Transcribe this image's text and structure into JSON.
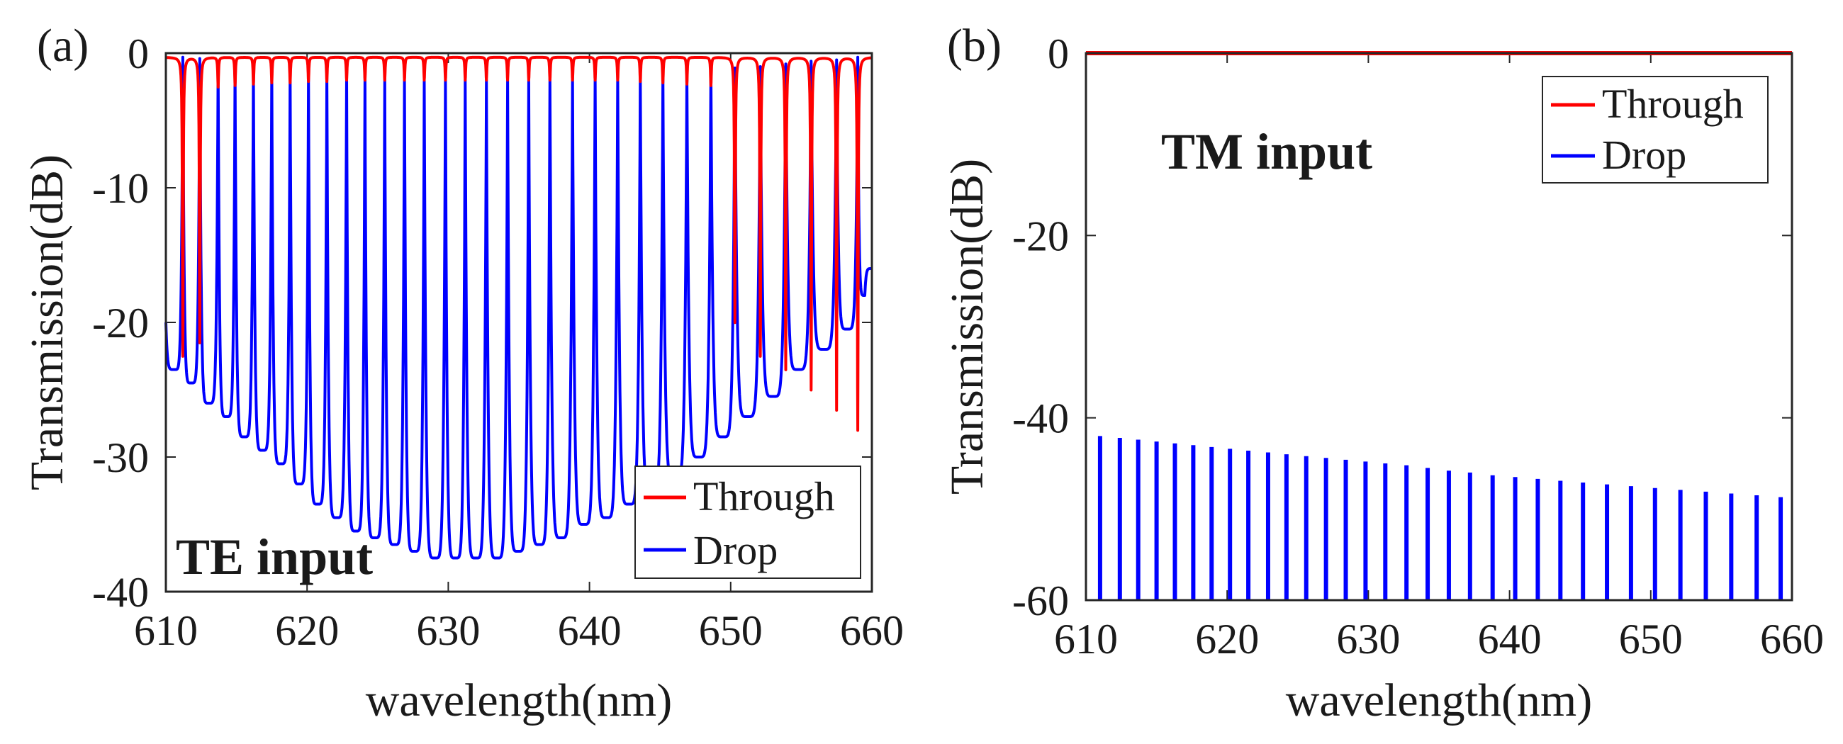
{
  "figure": {
    "colors": {
      "through": "#ff0000",
      "drop": "#0000ff",
      "axis": "#262626"
    }
  },
  "chart_data": [
    {
      "type": "line",
      "panel_label": "(a)",
      "annotation": "TE input",
      "xlabel": "wavelength(nm)",
      "ylabel": "Transmission(dB)",
      "xlim": [
        610,
        660
      ],
      "ylim": [
        -40,
        0
      ],
      "xticks": [
        610,
        620,
        630,
        640,
        650,
        660
      ],
      "yticks": [
        0,
        -10,
        -20,
        -30,
        -40
      ],
      "xtick_labels": [
        "610",
        "620",
        "630",
        "640",
        "650",
        "660"
      ],
      "ytick_labels": [
        "0",
        "-10",
        "-20",
        "-30",
        "-40"
      ],
      "legend_position": "bottom-right",
      "series": [
        {
          "name": "Through",
          "color": "#ff0000",
          "style": "resonance-dips",
          "baseline": -0.3,
          "resonances": [
            611.2,
            612.4,
            613.7,
            614.9,
            616.2,
            617.5,
            618.8,
            620.1,
            621.4,
            622.8,
            624.1,
            625.5,
            626.9,
            628.3,
            629.8,
            631.2,
            632.7,
            634.2,
            635.7,
            637.2,
            638.8,
            640.4,
            642.0,
            643.6,
            645.2,
            646.9,
            648.6,
            650.3,
            652.1,
            653.9,
            655.7,
            657.5,
            659.0
          ],
          "dip_depths": [
            -22.5,
            -21.5,
            -2.5,
            -2.4,
            -2.3,
            -2.2,
            -2.2,
            -2.1,
            -2.1,
            -2.0,
            -2.0,
            -2.0,
            -2.0,
            -2.0,
            -2.0,
            -2.0,
            -2.0,
            -2.0,
            -2.0,
            -2.0,
            -2.0,
            -2.0,
            -2.0,
            -2.1,
            -2.2,
            -2.3,
            -2.4,
            -20.0,
            -22.5,
            -23.5,
            -25.0,
            -26.5,
            -28.0
          ]
        },
        {
          "name": "Drop",
          "color": "#0000ff",
          "style": "resonance-peaks",
          "resonances": [
            611.2,
            612.4,
            613.7,
            614.9,
            616.2,
            617.5,
            618.8,
            620.1,
            621.4,
            622.8,
            624.1,
            625.5,
            626.9,
            628.3,
            629.8,
            631.2,
            632.7,
            634.2,
            635.7,
            637.2,
            638.8,
            640.4,
            642.0,
            643.6,
            645.2,
            646.9,
            648.6,
            650.3,
            652.1,
            653.9,
            655.7,
            657.5,
            659.0
          ],
          "peak_values": [
            -0.3,
            -0.4,
            -0.6,
            -0.8,
            -0.9,
            -1.0,
            -1.2,
            -1.3,
            -1.4,
            -1.6,
            -1.7,
            -1.8,
            -2.0,
            -2.0,
            -2.0,
            -2.0,
            -2.0,
            -2.0,
            -2.0,
            -1.9,
            -1.8,
            -1.7,
            -1.6,
            -1.5,
            -1.4,
            -1.3,
            -1.2,
            -1.1,
            -1.0,
            -0.8,
            -0.6,
            -0.5,
            -0.3
          ],
          "trough_x": [
            610.6,
            611.8,
            613.05,
            614.3,
            615.55,
            616.85,
            618.15,
            619.45,
            620.75,
            622.1,
            623.45,
            624.8,
            626.2,
            627.6,
            629.05,
            630.5,
            631.95,
            633.45,
            634.95,
            636.45,
            638.0,
            639.6,
            641.2,
            642.8,
            644.4,
            646.05,
            647.75,
            649.45,
            651.2,
            653.0,
            654.8,
            656.6,
            658.25,
            659.5
          ],
          "trough_values": [
            -23.5,
            -24.5,
            -26.0,
            -27.0,
            -28.5,
            -29.5,
            -30.5,
            -32.0,
            -33.5,
            -34.5,
            -35.5,
            -36.0,
            -36.5,
            -37.0,
            -37.5,
            -37.5,
            -37.5,
            -37.5,
            -37.0,
            -36.5,
            -36.0,
            -35.0,
            -34.5,
            -33.5,
            -32.5,
            -31.5,
            -30.0,
            -28.5,
            -27.0,
            -25.5,
            -23.5,
            -22.0,
            -20.5,
            -18.0
          ],
          "start_value": -20.0,
          "end_value": -16.0
        }
      ]
    },
    {
      "type": "line",
      "panel_label": "(b)",
      "annotation": "TM input",
      "xlabel": "wavelength(nm)",
      "ylabel": "Transmission(dB)",
      "xlim": [
        610,
        660
      ],
      "ylim": [
        -60,
        0
      ],
      "xticks": [
        610,
        620,
        630,
        640,
        650,
        660
      ],
      "yticks": [
        0,
        -20,
        -40,
        -60
      ],
      "xtick_labels": [
        "610",
        "620",
        "630",
        "640",
        "650",
        "660"
      ],
      "ytick_labels": [
        "0",
        "-20",
        "-40",
        "-60"
      ],
      "legend_position": "top-right",
      "series": [
        {
          "name": "Through",
          "color": "#ff0000",
          "style": "flat",
          "value": 0
        },
        {
          "name": "Drop",
          "color": "#0000ff",
          "style": "narrow-peaks",
          "floor": -60,
          "resonances": [
            611.0,
            612.4,
            613.7,
            615.0,
            616.3,
            617.6,
            618.9,
            620.2,
            621.5,
            622.9,
            624.2,
            625.6,
            627.0,
            628.4,
            629.8,
            631.2,
            632.7,
            634.2,
            635.7,
            637.2,
            638.8,
            640.4,
            642.0,
            643.6,
            645.2,
            646.9,
            648.6,
            650.3,
            652.1,
            653.9,
            655.7,
            657.5,
            659.2
          ],
          "peak_values": [
            -42.0,
            -42.2,
            -42.4,
            -42.6,
            -42.8,
            -43.0,
            -43.2,
            -43.4,
            -43.6,
            -43.8,
            -44.0,
            -44.2,
            -44.4,
            -44.6,
            -44.8,
            -45.0,
            -45.2,
            -45.5,
            -45.8,
            -46.0,
            -46.3,
            -46.5,
            -46.7,
            -46.9,
            -47.1,
            -47.3,
            -47.5,
            -47.7,
            -47.9,
            -48.1,
            -48.3,
            -48.5,
            -48.7
          ]
        }
      ]
    }
  ]
}
